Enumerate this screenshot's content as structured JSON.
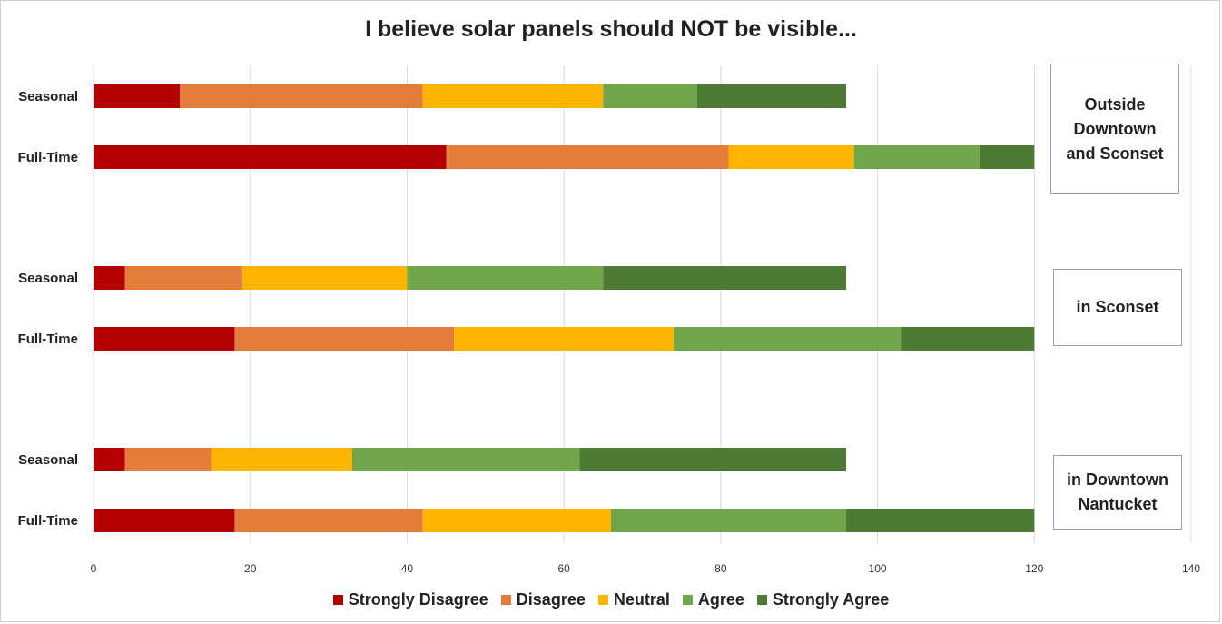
{
  "chart_data": {
    "type": "bar",
    "orientation": "horizontal",
    "stacked": true,
    "title": "I believe solar panels should NOT be visible...",
    "xlim": [
      0,
      140
    ],
    "x_ticks": [
      "0",
      "20",
      "40",
      "60",
      "80",
      "100",
      "120",
      "140"
    ],
    "grid": "vertical",
    "legend_position": "bottom",
    "series": [
      {
        "name": "Strongly Disagree",
        "color": "#b30000"
      },
      {
        "name": "Disagree",
        "color": "#e67c3a"
      },
      {
        "name": "Neutral",
        "color": "#ffb400"
      },
      {
        "name": "Agree",
        "color": "#70a54a"
      },
      {
        "name": "Strongly Agree",
        "color": "#4e7a35"
      }
    ],
    "groups": [
      {
        "label": "Outside\nDowntown\nand Sconset",
        "rows": [
          {
            "category": "Seasonal",
            "values": [
              11,
              31,
              23,
              12,
              19
            ]
          },
          {
            "category": "Full-Time",
            "values": [
              45,
              36,
              16,
              16,
              7
            ]
          }
        ]
      },
      {
        "label": "in Sconset",
        "rows": [
          {
            "category": "Seasonal",
            "values": [
              4,
              15,
              21,
              25,
              31
            ]
          },
          {
            "category": "Full-Time",
            "values": [
              18,
              28,
              28,
              29,
              17
            ]
          }
        ]
      },
      {
        "label": "in Downtown\nNantucket",
        "rows": [
          {
            "category": "Seasonal",
            "values": [
              4,
              11,
              18,
              29,
              34
            ]
          },
          {
            "category": "Full-Time",
            "values": [
              18,
              24,
              24,
              30,
              24
            ]
          }
        ]
      }
    ]
  }
}
